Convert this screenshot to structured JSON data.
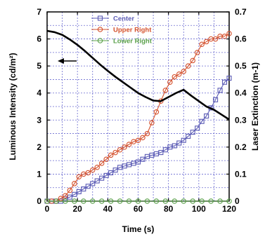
{
  "chart_data": {
    "type": "line",
    "xlabel": "Time (s)",
    "ylabel_left": "Luminous Intensity (cd/m²)",
    "ylabel_right": "Laser Extinction (m-1)",
    "xlim": [
      0,
      120
    ],
    "ylim_left": [
      0,
      7
    ],
    "ylim_right": [
      0,
      0.7
    ],
    "x_ticks": [
      "0",
      "20",
      "40",
      "60",
      "80",
      "100",
      "120"
    ],
    "y_ticks_left": [
      "0",
      "1",
      "2",
      "3",
      "4",
      "5",
      "6",
      "7"
    ],
    "y_ticks_right": [
      "0",
      "0.1",
      "0.2",
      "0.3",
      "0.4",
      "0.5",
      "0.6",
      "0.7"
    ],
    "grid": true,
    "legend_position": "top-center",
    "series": [
      {
        "name": "Center",
        "axis": "right",
        "color": "#5a5ab4",
        "marker": "square",
        "x": [
          0,
          3,
          6,
          9,
          12,
          15,
          18,
          21,
          24,
          27,
          30,
          33,
          36,
          39,
          42,
          45,
          48,
          51,
          54,
          57,
          60,
          63,
          66,
          69,
          72,
          75,
          78,
          81,
          84,
          87,
          90,
          93,
          96,
          99,
          102,
          105,
          108,
          111,
          114,
          117,
          120
        ],
        "values": [
          0,
          0,
          0,
          0,
          0.01,
          0.015,
          0.025,
          0.035,
          0.045,
          0.055,
          0.065,
          0.075,
          0.085,
          0.095,
          0.105,
          0.115,
          0.125,
          0.13,
          0.135,
          0.14,
          0.145,
          0.155,
          0.165,
          0.17,
          0.175,
          0.18,
          0.19,
          0.2,
          0.205,
          0.215,
          0.225,
          0.24,
          0.255,
          0.27,
          0.295,
          0.315,
          0.345,
          0.375,
          0.41,
          0.44,
          0.455
        ]
      },
      {
        "name": "Upper Right",
        "axis": "right",
        "color": "#d4502c",
        "marker": "circle",
        "x": [
          0,
          3,
          6,
          9,
          12,
          15,
          18,
          21,
          24,
          27,
          30,
          33,
          36,
          39,
          42,
          45,
          48,
          51,
          54,
          57,
          60,
          63,
          66,
          69,
          72,
          75,
          78,
          81,
          84,
          87,
          90,
          93,
          96,
          99,
          102,
          105,
          108,
          111,
          114,
          117,
          120
        ],
        "values": [
          0,
          0,
          0,
          0.01,
          0.02,
          0.04,
          0.065,
          0.09,
          0.1,
          0.105,
          0.115,
          0.125,
          0.14,
          0.155,
          0.17,
          0.18,
          0.19,
          0.2,
          0.21,
          0.22,
          0.225,
          0.235,
          0.25,
          0.29,
          0.33,
          0.37,
          0.41,
          0.44,
          0.46,
          0.47,
          0.48,
          0.5,
          0.52,
          0.55,
          0.58,
          0.59,
          0.6,
          0.6,
          0.61,
          0.61,
          0.62
        ]
      },
      {
        "name": "Lower Right",
        "axis": "right",
        "color": "#5aa04a",
        "marker": "circle",
        "x": [
          0,
          6,
          12,
          18,
          24,
          30,
          36,
          42,
          48,
          54,
          60,
          66,
          72,
          78,
          84,
          90,
          96,
          102,
          108,
          114,
          120
        ],
        "values": [
          0,
          0,
          0,
          0,
          0,
          0,
          0,
          0,
          0,
          0,
          0,
          0,
          0,
          0,
          0,
          0,
          0,
          0,
          0,
          0,
          0
        ]
      },
      {
        "name": "Luminous Intensity",
        "axis": "left",
        "color": "#000000",
        "marker": "none",
        "x": [
          0,
          5,
          10,
          15,
          20,
          25,
          30,
          35,
          40,
          45,
          50,
          55,
          60,
          65,
          70,
          75,
          80,
          85,
          90,
          95,
          100,
          105,
          110,
          115,
          120
        ],
        "values": [
          6.3,
          6.25,
          6.15,
          5.98,
          5.78,
          5.55,
          5.3,
          5.05,
          4.82,
          4.6,
          4.4,
          4.2,
          4.0,
          3.85,
          3.72,
          3.7,
          3.85,
          4.0,
          4.12,
          3.9,
          3.7,
          3.5,
          3.38,
          3.2,
          3.02
        ]
      }
    ]
  }
}
